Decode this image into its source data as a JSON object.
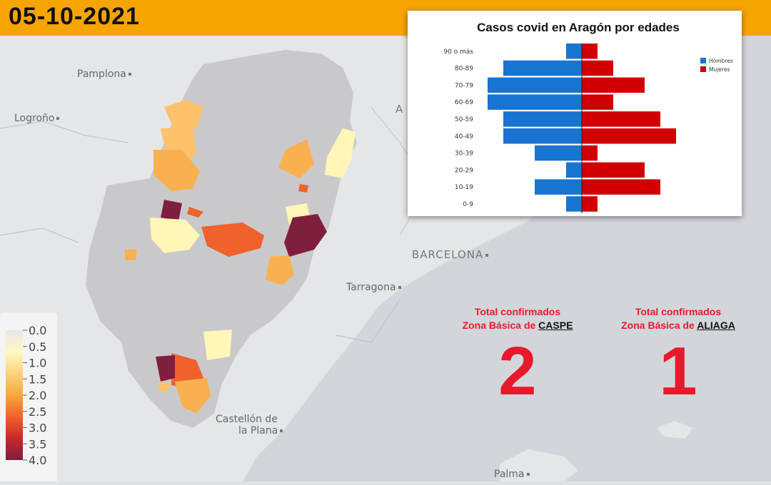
{
  "header": {
    "date": "05-10-2021",
    "color": "#f6a400"
  },
  "map_labels": [
    {
      "name": "pamplona",
      "text": "Pamplona"
    },
    {
      "name": "logrono",
      "text": "Logroño"
    },
    {
      "name": "barcelona",
      "text": "BARCELONA"
    },
    {
      "name": "tarragona",
      "text": "Tarragona"
    },
    {
      "name": "castellon1",
      "text": "Castellón de"
    },
    {
      "name": "castellon2",
      "text": "la Plana"
    },
    {
      "name": "palma",
      "text": "Palma"
    },
    {
      "name": "andorra",
      "text": "A"
    }
  ],
  "color_scale": {
    "ticks": [
      "0.0",
      "0.5",
      "1.0",
      "1.5",
      "2.0",
      "2.5",
      "3.0",
      "3.5",
      "4.0"
    ],
    "colors": [
      "#e6e6e6",
      "#fff8c2",
      "#fdd27f",
      "#f9a73f",
      "#f0612b",
      "#c52a2a",
      "#801e3e"
    ]
  },
  "totals": [
    {
      "line1": "Total confirmados",
      "line2_prefix": "Zona Básica de",
      "zone": "CASPE",
      "value": "2"
    },
    {
      "line1": "Total confirmados",
      "line2_prefix": "Zona Básica de",
      "zone": "ALIAGA",
      "value": "1"
    }
  ],
  "chart_data": {
    "type": "bar",
    "orientation": "horizontal",
    "title": "Casos covid en Aragón por edades",
    "categories": [
      "90 o más",
      "80-89",
      "70-79",
      "60-69",
      "50-59",
      "40-49",
      "30-39",
      "20-29",
      "10-19",
      "0-9"
    ],
    "series": [
      {
        "name": "Hombres",
        "color": "#1874d0",
        "values": [
          1,
          5,
          6,
          6,
          5,
          5,
          3,
          1,
          3,
          1
        ]
      },
      {
        "name": "Mujeres",
        "color": "#d00000",
        "values": [
          1,
          2,
          4,
          2,
          5,
          6,
          1,
          4,
          5,
          1
        ]
      }
    ],
    "legend_position": "top-right",
    "grid": false
  }
}
